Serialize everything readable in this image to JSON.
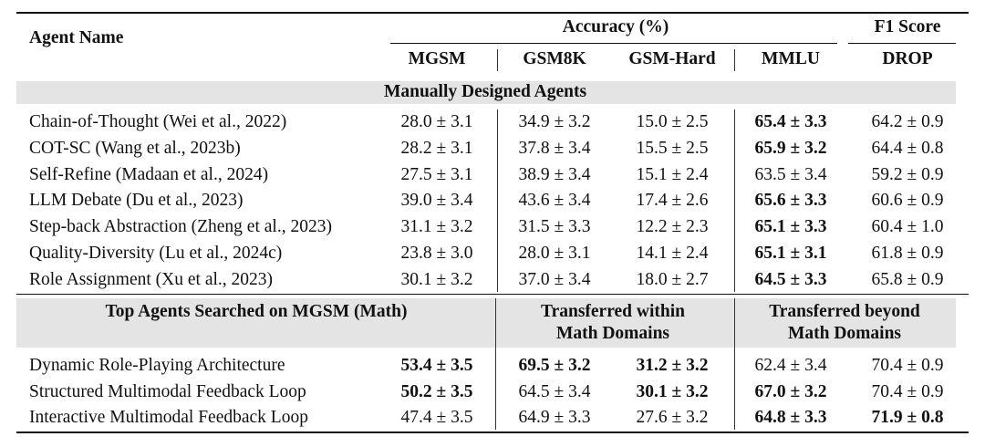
{
  "header": {
    "agent_name": "Agent Name",
    "accuracy": "Accuracy (%)",
    "f1": "F1 Score",
    "cols": [
      "MGSM",
      "GSM8K",
      "GSM-Hard",
      "MMLU",
      "DROP"
    ]
  },
  "section1": {
    "title": "Manually Designed Agents"
  },
  "manual_rows": [
    {
      "name": "Chain-of-Thought (Wei et al., 2022)",
      "vals": [
        "28.0 ± 3.1",
        "34.9 ± 3.2",
        "15.0 ± 2.5",
        "65.4 ± 3.3",
        "64.2 ± 0.9"
      ],
      "bold": [
        false,
        false,
        false,
        true,
        false
      ]
    },
    {
      "name": "COT-SC (Wang et al., 2023b)",
      "vals": [
        "28.2 ± 3.1",
        "37.8 ± 3.4",
        "15.5 ± 2.5",
        "65.9 ± 3.2",
        "64.4 ± 0.8"
      ],
      "bold": [
        false,
        false,
        false,
        true,
        false
      ]
    },
    {
      "name": "Self-Refine (Madaan et al., 2024)",
      "vals": [
        "27.5 ± 3.1",
        "38.9 ± 3.4",
        "15.1 ± 2.4",
        "63.5 ± 3.4",
        "59.2 ± 0.9"
      ],
      "bold": [
        false,
        false,
        false,
        false,
        false
      ]
    },
    {
      "name": "LLM Debate (Du et al., 2023)",
      "vals": [
        "39.0 ± 3.4",
        "43.6 ± 3.4",
        "17.4 ± 2.6",
        "65.6 ± 3.3",
        "60.6 ± 0.9"
      ],
      "bold": [
        false,
        false,
        false,
        true,
        false
      ]
    },
    {
      "name": "Step-back Abstraction (Zheng et al., 2023)",
      "vals": [
        "31.1 ± 3.2",
        "31.5 ± 3.3",
        "12.2 ± 2.3",
        "65.1 ± 3.3",
        "60.4 ± 1.0"
      ],
      "bold": [
        false,
        false,
        false,
        true,
        false
      ]
    },
    {
      "name": "Quality-Diversity (Lu et al., 2024c)",
      "vals": [
        "23.8 ± 3.0",
        "28.0 ± 3.1",
        "14.1 ± 2.4",
        "65.1 ± 3.1",
        "61.8 ± 0.9"
      ],
      "bold": [
        false,
        false,
        false,
        true,
        false
      ]
    },
    {
      "name": "Role Assignment (Xu et al., 2023)",
      "vals": [
        "30.1 ± 3.2",
        "37.0 ± 3.4",
        "18.0 ± 2.7",
        "64.5 ± 3.3",
        "65.8 ± 0.9"
      ],
      "bold": [
        false,
        false,
        false,
        true,
        false
      ]
    }
  ],
  "section2": {
    "title": "Top Agents Searched on MGSM (Math)",
    "within_line1": "Transferred within",
    "within_line2": "Math Domains",
    "beyond_line1": "Transferred beyond",
    "beyond_line2": "Math Domains"
  },
  "search_rows": [
    {
      "name": "Dynamic Role-Playing Architecture",
      "vals": [
        "53.4 ± 3.5",
        "69.5 ± 3.2",
        "31.2 ± 3.2",
        "62.4 ± 3.4",
        "70.4 ± 0.9"
      ],
      "bold": [
        true,
        true,
        true,
        false,
        false
      ]
    },
    {
      "name": "Structured Multimodal Feedback Loop",
      "vals": [
        "50.2 ± 3.5",
        "64.5 ± 3.4",
        "30.1 ± 3.2",
        "67.0 ± 3.2",
        "70.4 ± 0.9"
      ],
      "bold": [
        true,
        false,
        true,
        true,
        false
      ]
    },
    {
      "name": "Interactive Multimodal Feedback Loop",
      "vals": [
        "47.4 ± 3.5",
        "64.9 ± 3.3",
        "27.6 ± 3.2",
        "64.8 ± 3.3",
        "71.9 ± 0.8"
      ],
      "bold": [
        false,
        false,
        false,
        true,
        true
      ]
    }
  ]
}
